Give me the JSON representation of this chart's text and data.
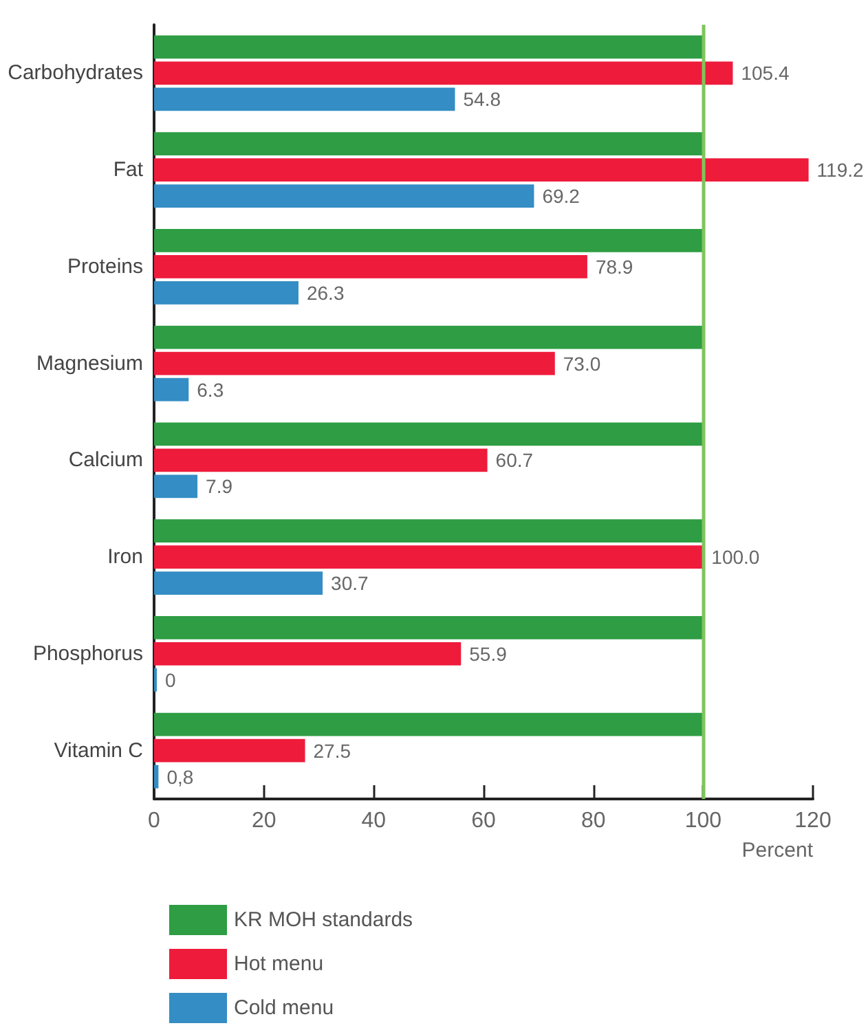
{
  "chart_data": {
    "type": "bar",
    "orientation": "horizontal",
    "xlabel": "Percent",
    "categories": [
      "Carbohydrates",
      "Fat",
      "Proteins",
      "Magnesium",
      "Calcium",
      "Iron",
      "Phosphorus",
      "Vitamin C"
    ],
    "series": [
      {
        "name": "KR MOH standards",
        "color": "#2e9d43",
        "values": [
          100,
          100,
          100,
          100,
          100,
          100,
          100,
          100
        ]
      },
      {
        "name": "Hot menu",
        "color": "#ee1b3b",
        "values": [
          105.4,
          119.2,
          78.9,
          73.0,
          60.7,
          100.0,
          55.9,
          27.5
        ],
        "value_labels": [
          "105.4",
          "119.2",
          "78.9",
          "73.0",
          "60.7",
          "100.0",
          "55.9",
          "27.5"
        ]
      },
      {
        "name": "Cold menu",
        "color": "#348dc4",
        "values": [
          54.8,
          69.2,
          26.3,
          6.3,
          7.9,
          30.7,
          0,
          0.8
        ],
        "value_labels": [
          "54.8",
          "69.2",
          "26.3",
          "6.3",
          "7.9",
          "30.7",
          "0",
          "0,8"
        ]
      }
    ],
    "xlim": [
      0,
      120
    ],
    "xticks": [
      0,
      20,
      40,
      60,
      80,
      100,
      120
    ],
    "ref_lines": [
      {
        "axis": "x",
        "value": 100,
        "color": "#7ec55a"
      }
    ],
    "grid": false,
    "legend": "bottom left"
  }
}
